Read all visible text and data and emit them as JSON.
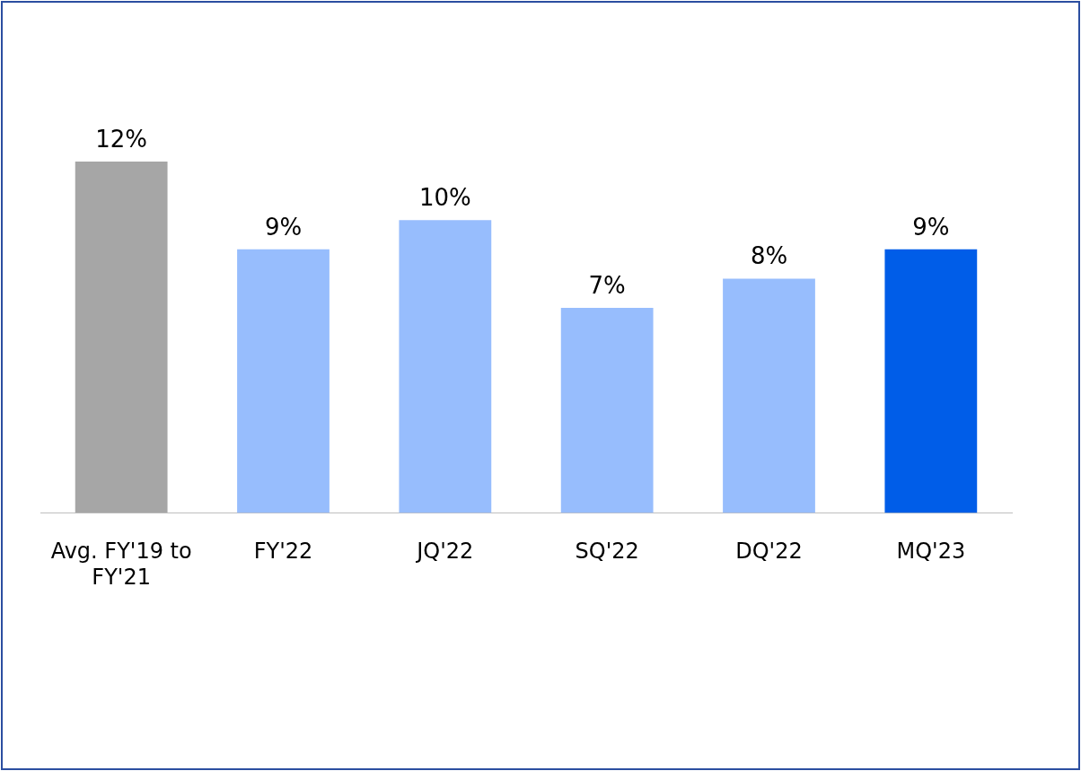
{
  "chart_data": {
    "type": "bar",
    "categories": [
      "Avg. FY'19 to FY'21",
      "FY'22",
      "JQ'22",
      "SQ'22",
      "DQ'22",
      "MQ'23"
    ],
    "values": [
      12,
      9,
      10,
      7,
      8,
      9
    ],
    "colors": [
      "#a6a6a6",
      "#97bdfd",
      "#97bdfd",
      "#97bdfd",
      "#97bdfd",
      "#005de8"
    ],
    "value_labels": [
      "12%",
      "9%",
      "10%",
      "7%",
      "8%",
      "9%"
    ],
    "grid": false,
    "legend": false,
    "tick_labels": "x"
  }
}
